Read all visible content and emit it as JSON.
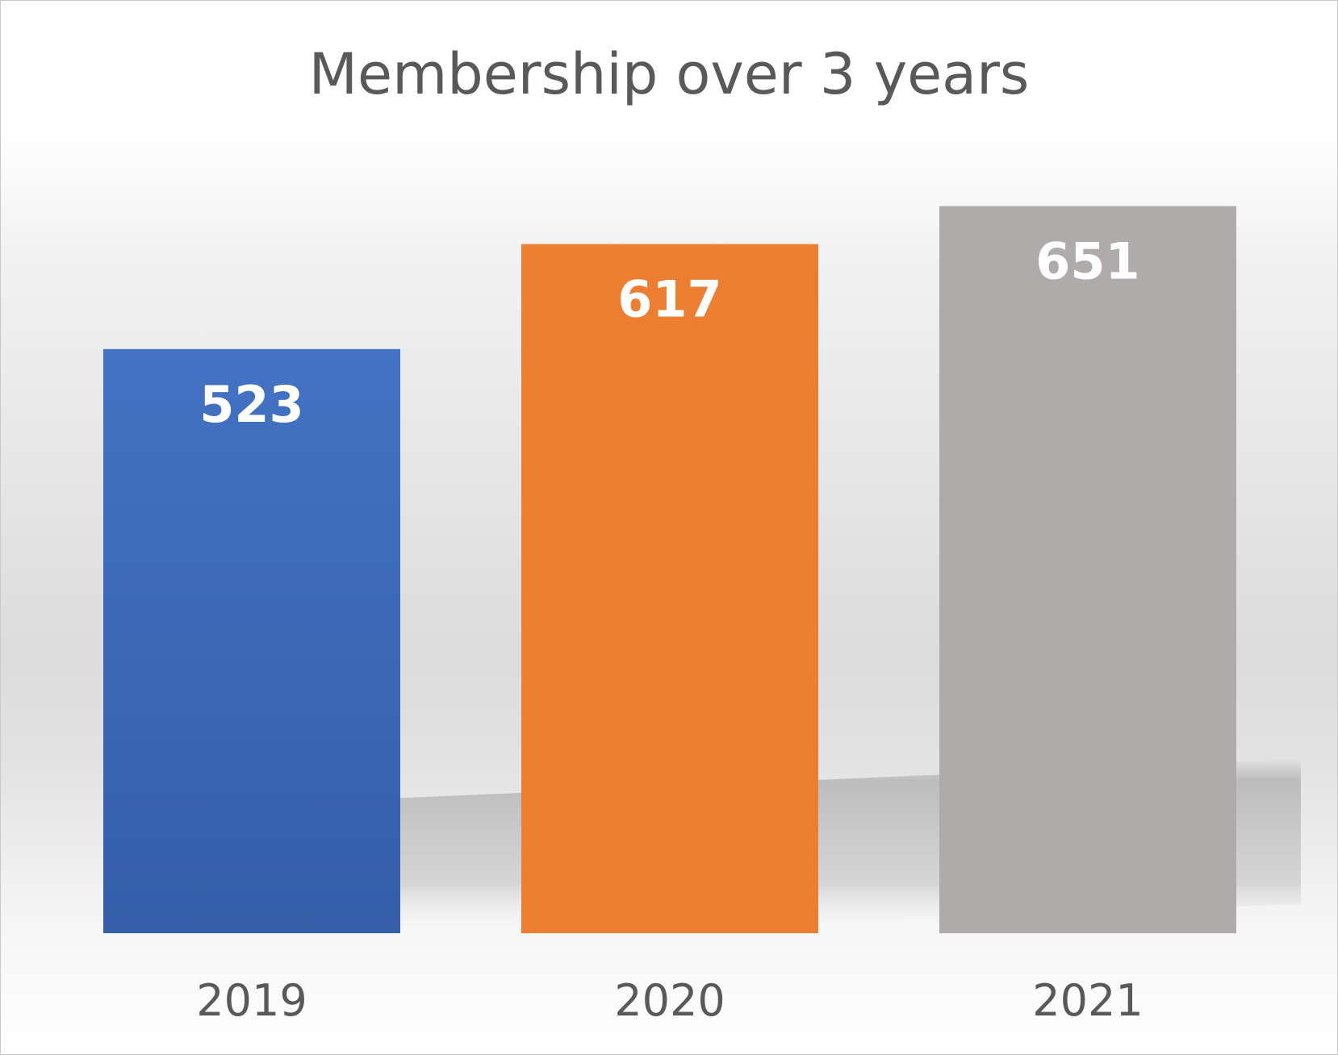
{
  "chart_data": {
    "type": "bar",
    "title": "Membership over 3 years",
    "xlabel": "",
    "ylabel": "",
    "categories": [
      "2019",
      "2020",
      "2021"
    ],
    "values": [
      523,
      617,
      651
    ],
    "colors": [
      "#4472c4",
      "#ed7d31",
      "#afabab"
    ],
    "ylim": [
      0,
      720
    ],
    "grid": false,
    "legend": "none",
    "data_labels": "inside-end"
  }
}
